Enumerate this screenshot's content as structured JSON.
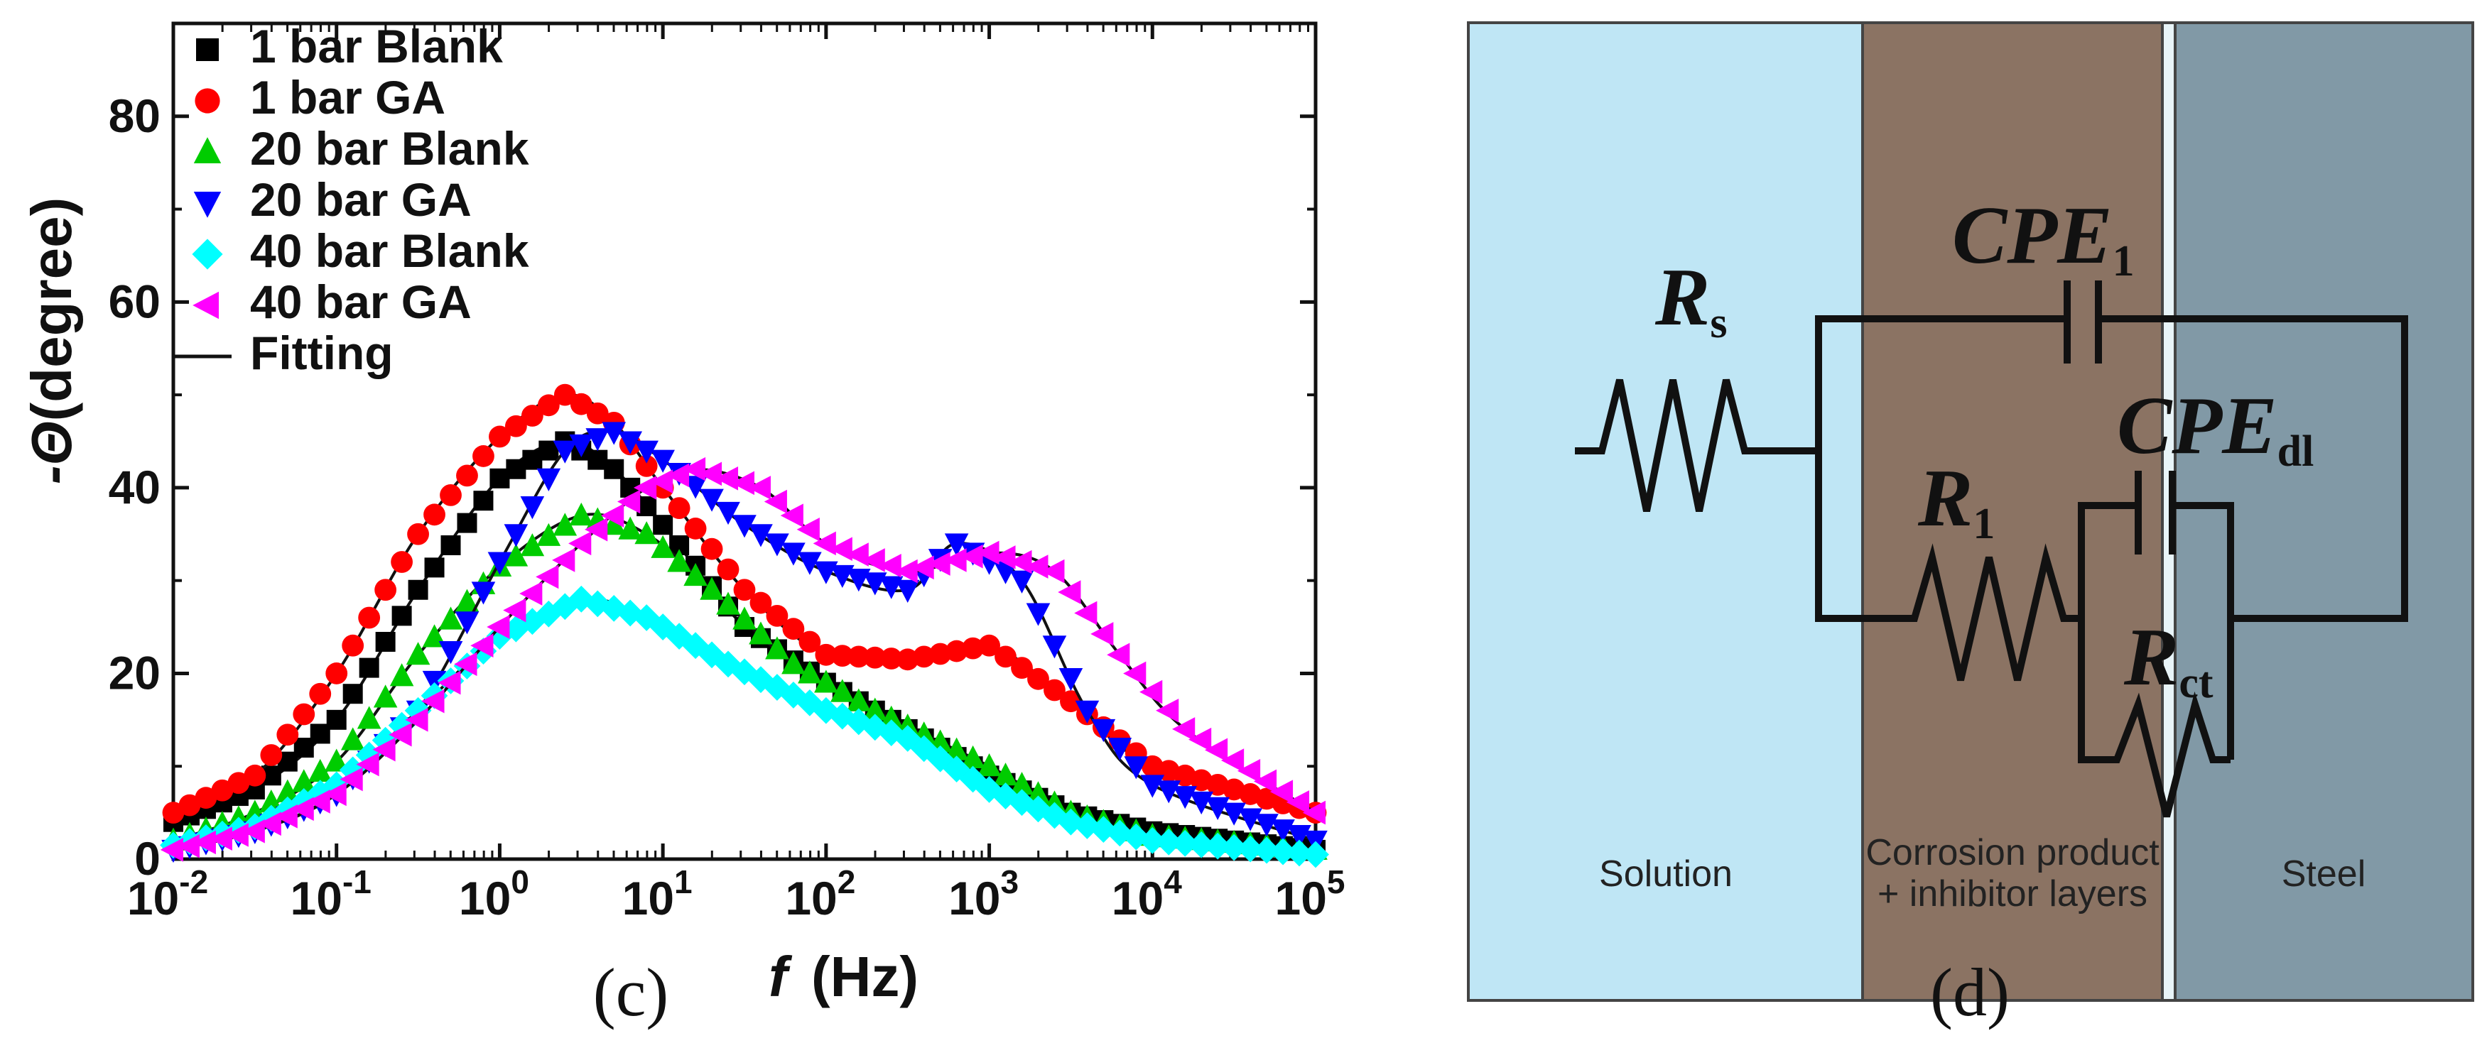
{
  "figure_c": {
    "panel_label": "(c)",
    "ylabel_prefix": "-Θ",
    "ylabel_text": "(degree)",
    "xlabel_var": "f",
    "xlabel_unit": "(Hz)"
  },
  "figure_d": {
    "panel_label": "(d)",
    "regions": {
      "solution": "Solution",
      "corrosion_line1": "Corrosion product",
      "corrosion_line2": "+ inhibitor layers",
      "steel": "Steel"
    },
    "colors": {
      "solution": "#bfe6f5",
      "corrosion": "#8b7363",
      "steel": "#8199a6",
      "gap": "#e8f4f8"
    },
    "components": {
      "Rs": {
        "main": "R",
        "sub": "s"
      },
      "CPE1": {
        "main": "CPE",
        "sub": "1"
      },
      "R1": {
        "main": "R",
        "sub": "1"
      },
      "CPEdl": {
        "main": "CPE",
        "sub": "dl"
      },
      "Rct": {
        "main": "R",
        "sub": "ct"
      }
    }
  },
  "chart_data": {
    "type": "scatter",
    "title": "",
    "xlabel": "f (Hz)",
    "ylabel": "-Θ (degree)",
    "xscale": "log",
    "xlim": [
      0.01,
      100000
    ],
    "ylim": [
      0,
      90
    ],
    "xticks": [
      {
        "base": "10",
        "exp": "-2",
        "value": 0.01
      },
      {
        "base": "10",
        "exp": "-1",
        "value": 0.1
      },
      {
        "base": "10",
        "exp": "0",
        "value": 1
      },
      {
        "base": "10",
        "exp": "1",
        "value": 10
      },
      {
        "base": "10",
        "exp": "2",
        "value": 100
      },
      {
        "base": "10",
        "exp": "3",
        "value": 1000
      },
      {
        "base": "10",
        "exp": "4",
        "value": 10000
      },
      {
        "base": "10",
        "exp": "5",
        "value": 100000
      }
    ],
    "yticks": [
      {
        "label": "0",
        "value": 0
      },
      {
        "label": "20",
        "value": 20
      },
      {
        "label": "40",
        "value": 40
      },
      {
        "label": "60",
        "value": 60
      },
      {
        "label": "80",
        "value": 80
      }
    ],
    "legend_position": "top-left",
    "fit_label": "Fitting",
    "series": [
      {
        "name": "1 bar Blank",
        "color": "#000000",
        "marker": "square",
        "points": [
          [
            -2,
            4
          ],
          [
            -1.5,
            7.5
          ],
          [
            -1,
            15
          ],
          [
            -0.5,
            29
          ],
          [
            0,
            41
          ],
          [
            0.4,
            45
          ],
          [
            0.7,
            42
          ],
          [
            1,
            36
          ],
          [
            1.5,
            25
          ],
          [
            2,
            19
          ],
          [
            2.5,
            14
          ],
          [
            3,
            9
          ],
          [
            3.5,
            5
          ],
          [
            4,
            3
          ],
          [
            5,
            1
          ]
        ]
      },
      {
        "name": "1 bar GA",
        "color": "#ff0000",
        "marker": "circle",
        "points": [
          [
            -2,
            5
          ],
          [
            -1.5,
            9
          ],
          [
            -1,
            20
          ],
          [
            -0.5,
            35
          ],
          [
            0,
            45.5
          ],
          [
            0.4,
            50
          ],
          [
            0.7,
            47
          ],
          [
            1,
            40
          ],
          [
            1.5,
            29
          ],
          [
            2,
            22
          ],
          [
            2.5,
            21.5
          ],
          [
            3,
            23
          ],
          [
            3.5,
            17
          ],
          [
            4,
            10
          ],
          [
            5,
            5
          ]
        ]
      },
      {
        "name": "20 bar Blank",
        "color": "#00cc00",
        "marker": "triangle-up",
        "points": [
          [
            -2,
            2
          ],
          [
            -1.5,
            5
          ],
          [
            -1,
            10.5
          ],
          [
            -0.5,
            22
          ],
          [
            0,
            31.5
          ],
          [
            0.5,
            37
          ],
          [
            0.9,
            35
          ],
          [
            1.3,
            29
          ],
          [
            1.8,
            21
          ],
          [
            2.3,
            16
          ],
          [
            3,
            10
          ],
          [
            3.5,
            5
          ],
          [
            4,
            2.5
          ],
          [
            5,
            1
          ]
        ]
      },
      {
        "name": "20 bar GA",
        "color": "#0000ff",
        "marker": "triangle-down",
        "points": [
          [
            -2,
            1
          ],
          [
            -1.5,
            3
          ],
          [
            -1,
            7
          ],
          [
            -0.5,
            16
          ],
          [
            0,
            32
          ],
          [
            0.4,
            44
          ],
          [
            0.7,
            46
          ],
          [
            1,
            43
          ],
          [
            1.5,
            36
          ],
          [
            2,
            31
          ],
          [
            2.5,
            29
          ],
          [
            2.8,
            34
          ],
          [
            3.2,
            30
          ],
          [
            3.6,
            16
          ],
          [
            4,
            8
          ],
          [
            5,
            2
          ]
        ]
      },
      {
        "name": "40 bar Blank",
        "color": "#00ffff",
        "marker": "diamond",
        "points": [
          [
            -2,
            1.5
          ],
          [
            -1.5,
            3.5
          ],
          [
            -1,
            8
          ],
          [
            -0.5,
            16
          ],
          [
            0,
            24
          ],
          [
            0.5,
            28
          ],
          [
            0.9,
            26
          ],
          [
            1.4,
            21
          ],
          [
            2,
            16
          ],
          [
            2.5,
            13
          ],
          [
            3,
            7.5
          ],
          [
            3.5,
            4
          ],
          [
            4,
            2
          ],
          [
            5,
            0.5
          ]
        ]
      },
      {
        "name": "40 bar GA",
        "color": "#ff00ff",
        "marker": "triangle-left",
        "points": [
          [
            -2,
            1
          ],
          [
            -1.5,
            3
          ],
          [
            -1,
            7
          ],
          [
            -0.5,
            15
          ],
          [
            0,
            25
          ],
          [
            0.5,
            34
          ],
          [
            0.9,
            40
          ],
          [
            1.2,
            42
          ],
          [
            1.6,
            40
          ],
          [
            2,
            34
          ],
          [
            2.5,
            31
          ],
          [
            3,
            33
          ],
          [
            3.4,
            31
          ],
          [
            3.8,
            22
          ],
          [
            4.2,
            14
          ],
          [
            5,
            5
          ]
        ]
      }
    ]
  }
}
